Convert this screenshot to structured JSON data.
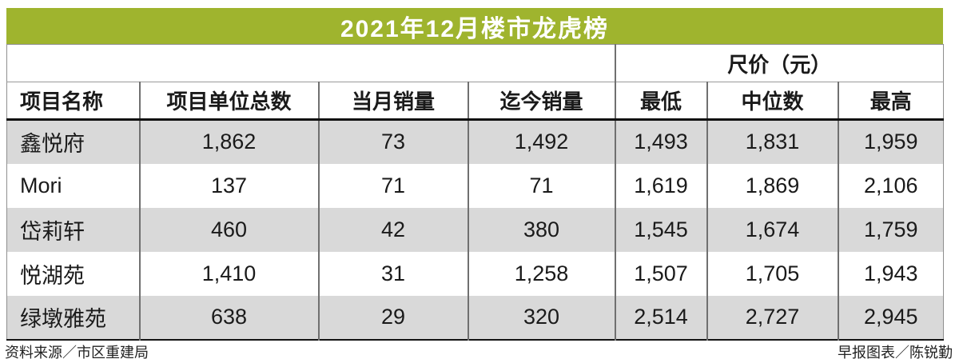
{
  "title": "2021年12月楼市龙虎榜",
  "colors": {
    "accent_green": "#9fb42e",
    "row_alt_gray": "#d9d9d9",
    "header_rule_black": "#101010"
  },
  "table": {
    "price_group_label": "尺价（元）",
    "columns": [
      "项目名称",
      "项目单位总数",
      "当月销量",
      "迄今销量",
      "最低",
      "中位数",
      "最高"
    ],
    "rows": [
      {
        "name": "鑫悦府",
        "values": [
          "1,862",
          "73",
          "1,492",
          "1,493",
          "1,831",
          "1,959"
        ]
      },
      {
        "name": "Mori",
        "values": [
          "137",
          "71",
          "71",
          "1,619",
          "1,869",
          "2,106"
        ]
      },
      {
        "name": "岱莉轩",
        "values": [
          "460",
          "42",
          "380",
          "1,545",
          "1,674",
          "1,759"
        ]
      },
      {
        "name": "悦湖苑",
        "values": [
          "1,410",
          "31",
          "1,258",
          "1,507",
          "1,705",
          "1,943"
        ]
      },
      {
        "name": "绿墩雅苑",
        "values": [
          "638",
          "29",
          "320",
          "2,514",
          "2,727",
          "2,945"
        ]
      }
    ]
  },
  "footer": {
    "source": "资料来源／市区重建局",
    "credit": "早报图表／陈锐勤"
  },
  "chart_data": {
    "type": "table",
    "title": "2021年12月楼市龙虎榜",
    "column_groups": [
      {
        "label": "尺价（元）",
        "span_columns": [
          "最低",
          "中位数",
          "最高"
        ]
      }
    ],
    "columns": [
      "项目名称",
      "项目单位总数",
      "当月销量",
      "迄今销量",
      "最低",
      "中位数",
      "最高"
    ],
    "rows": [
      [
        "鑫悦府",
        1862,
        73,
        1492,
        1493,
        1831,
        1959
      ],
      [
        "Mori",
        137,
        71,
        71,
        1619,
        1869,
        2106
      ],
      [
        "岱莉轩",
        460,
        42,
        380,
        1545,
        1674,
        1759
      ],
      [
        "悦湖苑",
        1410,
        31,
        1258,
        1507,
        1705,
        1943
      ],
      [
        "绿墩雅苑",
        638,
        29,
        320,
        2514,
        2727,
        2945
      ]
    ],
    "source_note": "资料来源／市区重建局",
    "credit_note": "早报图表／陈锐勤"
  }
}
